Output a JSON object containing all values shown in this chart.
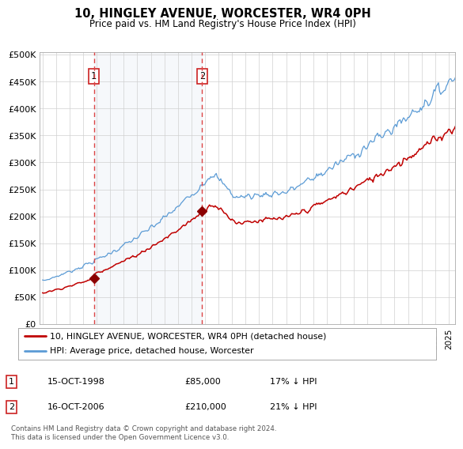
{
  "title": "10, HINGLEY AVENUE, WORCESTER, WR4 0PH",
  "subtitle": "Price paid vs. HM Land Registry's House Price Index (HPI)",
  "footer": "Contains HM Land Registry data © Crown copyright and database right 2024.\nThis data is licensed under the Open Government Licence v3.0.",
  "legend_line1": "10, HINGLEY AVENUE, WORCESTER, WR4 0PH (detached house)",
  "legend_line2": "HPI: Average price, detached house, Worcester",
  "sale1_label": "1",
  "sale1_date": "15-OCT-1998",
  "sale1_price": "£85,000",
  "sale1_hpi": "17% ↓ HPI",
  "sale1_year": 1998.79,
  "sale1_value": 85000,
  "sale2_label": "2",
  "sale2_date": "16-OCT-2006",
  "sale2_price": "£210,000",
  "sale2_hpi": "21% ↓ HPI",
  "sale2_year": 2006.79,
  "hpi_color": "#5b9bd5",
  "price_color": "#c00000",
  "marker_color": "#8b0000",
  "vline_color": "#e06060",
  "plot_bg": "#ffffff",
  "ylim_max": 500000,
  "yticks": [
    0,
    50000,
    100000,
    150000,
    200000,
    250000,
    300000,
    350000,
    400000,
    450000,
    500000
  ],
  "xlim_start": 1994.8,
  "xlim_end": 2025.5
}
